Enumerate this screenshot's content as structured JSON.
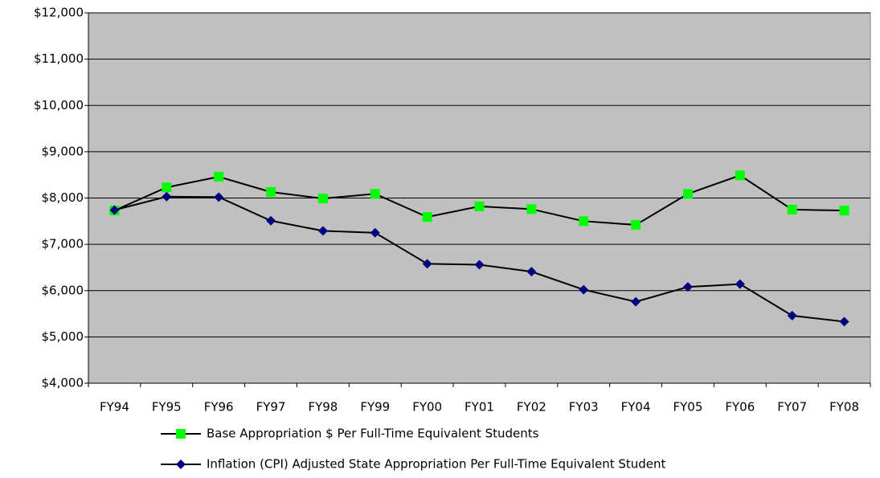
{
  "chart_data": {
    "type": "line",
    "categories": [
      "FY94",
      "FY95",
      "FY96",
      "FY97",
      "FY98",
      "FY99",
      "FY00",
      "FY01",
      "FY02",
      "FY03",
      "FY04",
      "FY05",
      "FY06",
      "FY07",
      "FY08"
    ],
    "series": [
      {
        "name": "Base Appropriation $ Per Full-Time Equivalent Students",
        "color": "#00ff00",
        "marker": "square",
        "values": [
          7730,
          8230,
          8460,
          8130,
          7990,
          8090,
          7590,
          7820,
          7760,
          7500,
          7420,
          8090,
          8490,
          7750,
          7730
        ]
      },
      {
        "name": "Inflation (CPI) Adjusted State Appropriation Per Full-Time Equivalent Student",
        "color": "#000080",
        "marker": "diamond",
        "values": [
          7740,
          8030,
          8020,
          7510,
          7290,
          7250,
          6580,
          6560,
          6410,
          6020,
          5760,
          6080,
          6140,
          5460,
          5330
        ]
      }
    ],
    "line_color": "#000000",
    "plot_background": "#c0c0c0",
    "ylim": [
      4000,
      12000
    ],
    "yticks": [
      {
        "value": 4000,
        "label": "$4,000"
      },
      {
        "value": 5000,
        "label": "$5,000"
      },
      {
        "value": 6000,
        "label": "$6,000"
      },
      {
        "value": 7000,
        "label": "$7,000"
      },
      {
        "value": 8000,
        "label": "$8,000"
      },
      {
        "value": 9000,
        "label": "$9,000"
      },
      {
        "value": 10000,
        "label": "$10,000"
      },
      {
        "value": 11000,
        "label": "$11,000"
      },
      {
        "value": 12000,
        "label": "$12,000"
      }
    ],
    "grid": true,
    "legend": "bottom"
  }
}
